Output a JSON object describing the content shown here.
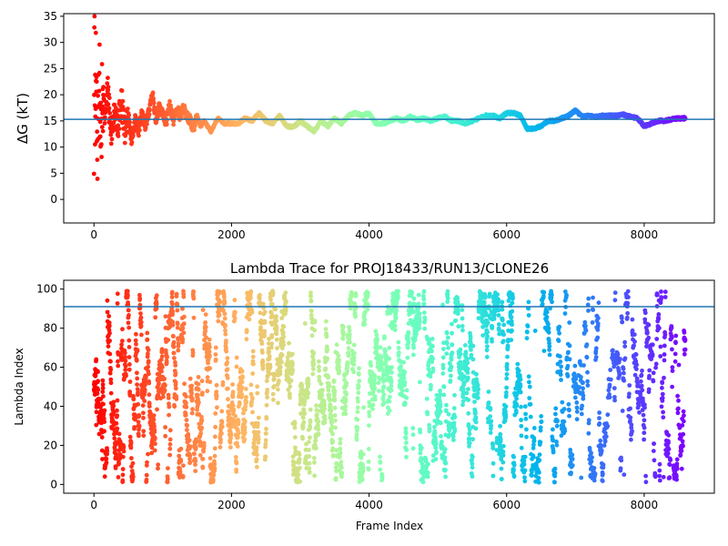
{
  "chart_data": [
    {
      "type": "scatter",
      "title": "",
      "xlabel": "",
      "ylabel": "ΔG (kT)",
      "xlim": [
        -440,
        9020
      ],
      "ylim": [
        -4.5,
        35.5
      ],
      "xticks": [
        0,
        2000,
        4000,
        6000,
        8000
      ],
      "yticks": [
        0,
        5,
        10,
        15,
        20,
        25,
        30,
        35
      ],
      "hline": 15.3,
      "hline_color": "#1f77b4",
      "colormap": "rainbow (red at frame 0 to violet at last frame)",
      "n_frames": 8600,
      "grid": false,
      "series": [
        {
          "points_description": "running free-energy estimate per frame",
          "trace": [
            [
              0,
              2.0
            ],
            [
              5,
              34.0
            ],
            [
              10,
              30.0
            ],
            [
              15,
              10.0
            ],
            [
              20,
              22.0
            ],
            [
              30,
              26.0
            ],
            [
              40,
              18.0
            ],
            [
              50,
              7.2
            ],
            [
              60,
              15.0
            ],
            [
              80,
              24.0
            ],
            [
              100,
              12.0
            ],
            [
              120,
              19.0
            ],
            [
              150,
              16.0
            ],
            [
              200,
              21.0
            ],
            [
              250,
              12.0
            ],
            [
              300,
              17.0
            ],
            [
              350,
              14.5
            ],
            [
              400,
              19.0
            ],
            [
              450,
              13.0
            ],
            [
              500,
              16.0
            ],
            [
              550,
              11.0
            ],
            [
              600,
              15.5
            ],
            [
              650,
              13.0
            ],
            [
              700,
              16.5
            ],
            [
              750,
              14.0
            ],
            [
              800,
              17.0
            ],
            [
              850,
              20.5
            ],
            [
              900,
              15.0
            ],
            [
              950,
              18.0
            ],
            [
              1000,
              16.5
            ],
            [
              1050,
              14.5
            ],
            [
              1100,
              18.0
            ],
            [
              1150,
              15.0
            ],
            [
              1200,
              17.5
            ],
            [
              1250,
              16.0
            ],
            [
              1300,
              17.5
            ],
            [
              1350,
              16.0
            ],
            [
              1400,
              15.0
            ],
            [
              1450,
              13.5
            ],
            [
              1500,
              16.0
            ],
            [
              1550,
              14.0
            ],
            [
              1600,
              15.0
            ],
            [
              1700,
              13.0
            ],
            [
              1800,
              15.5
            ],
            [
              1900,
              14.5
            ],
            [
              2000,
              14.5
            ],
            [
              2100,
              14.5
            ],
            [
              2200,
              15.5
            ],
            [
              2300,
              15.0
            ],
            [
              2400,
              16.5
            ],
            [
              2500,
              15.0
            ],
            [
              2600,
              14.5
            ],
            [
              2700,
              16.0
            ],
            [
              2800,
              14.0
            ],
            [
              2900,
              13.8
            ],
            [
              3000,
              15.0
            ],
            [
              3100,
              14.0
            ],
            [
              3200,
              13.0
            ],
            [
              3300,
              15.0
            ],
            [
              3400,
              14.0
            ],
            [
              3500,
              15.5
            ],
            [
              3600,
              14.5
            ],
            [
              3700,
              16.0
            ],
            [
              3800,
              16.5
            ],
            [
              3900,
              16.0
            ],
            [
              4000,
              16.5
            ],
            [
              4100,
              14.5
            ],
            [
              4200,
              14.5
            ],
            [
              4300,
              15.0
            ],
            [
              4400,
              15.5
            ],
            [
              4500,
              15.0
            ],
            [
              4600,
              15.8
            ],
            [
              4700,
              15.2
            ],
            [
              4800,
              15.5
            ],
            [
              4900,
              15.0
            ],
            [
              5000,
              15.5
            ],
            [
              5100,
              15.8
            ],
            [
              5200,
              15.0
            ],
            [
              5300,
              15.0
            ],
            [
              5400,
              14.5
            ],
            [
              5500,
              15.0
            ],
            [
              5600,
              15.5
            ],
            [
              5700,
              16.0
            ],
            [
              5800,
              16.0
            ],
            [
              5900,
              15.5
            ],
            [
              6000,
              16.5
            ],
            [
              6100,
              16.5
            ],
            [
              6200,
              16.0
            ],
            [
              6300,
              13.5
            ],
            [
              6400,
              13.5
            ],
            [
              6500,
              14.0
            ],
            [
              6600,
              15.0
            ],
            [
              6700,
              15.0
            ],
            [
              6800,
              15.5
            ],
            [
              6900,
              16.0
            ],
            [
              7000,
              17.0
            ],
            [
              7100,
              15.8
            ],
            [
              7200,
              16.0
            ],
            [
              7300,
              15.8
            ],
            [
              7400,
              16.0
            ],
            [
              7500,
              16.0
            ],
            [
              7600,
              16.0
            ],
            [
              7700,
              16.2
            ],
            [
              7800,
              15.8
            ],
            [
              7900,
              15.5
            ],
            [
              8000,
              14.0
            ],
            [
              8100,
              14.5
            ],
            [
              8200,
              15.0
            ],
            [
              8300,
              15.0
            ],
            [
              8400,
              15.3
            ],
            [
              8500,
              15.5
            ],
            [
              8600,
              15.5
            ]
          ]
        }
      ]
    },
    {
      "type": "scatter",
      "title": "Lambda Trace for PROJ18433/RUN13/CLONE26",
      "xlabel": "Frame Index",
      "ylabel": "Lambda Index",
      "xlim": [
        -440,
        9020
      ],
      "ylim": [
        -4.5,
        104.5
      ],
      "xticks": [
        0,
        2000,
        4000,
        6000,
        8000
      ],
      "yticks": [
        0,
        20,
        40,
        60,
        80,
        100
      ],
      "hline": 91,
      "hline_color": "#1f77b4",
      "colormap": "rainbow (red at frame 0 to violet at last frame)",
      "n_frames": 8600,
      "y_range": [
        1,
        99
      ],
      "grid": false
    }
  ]
}
